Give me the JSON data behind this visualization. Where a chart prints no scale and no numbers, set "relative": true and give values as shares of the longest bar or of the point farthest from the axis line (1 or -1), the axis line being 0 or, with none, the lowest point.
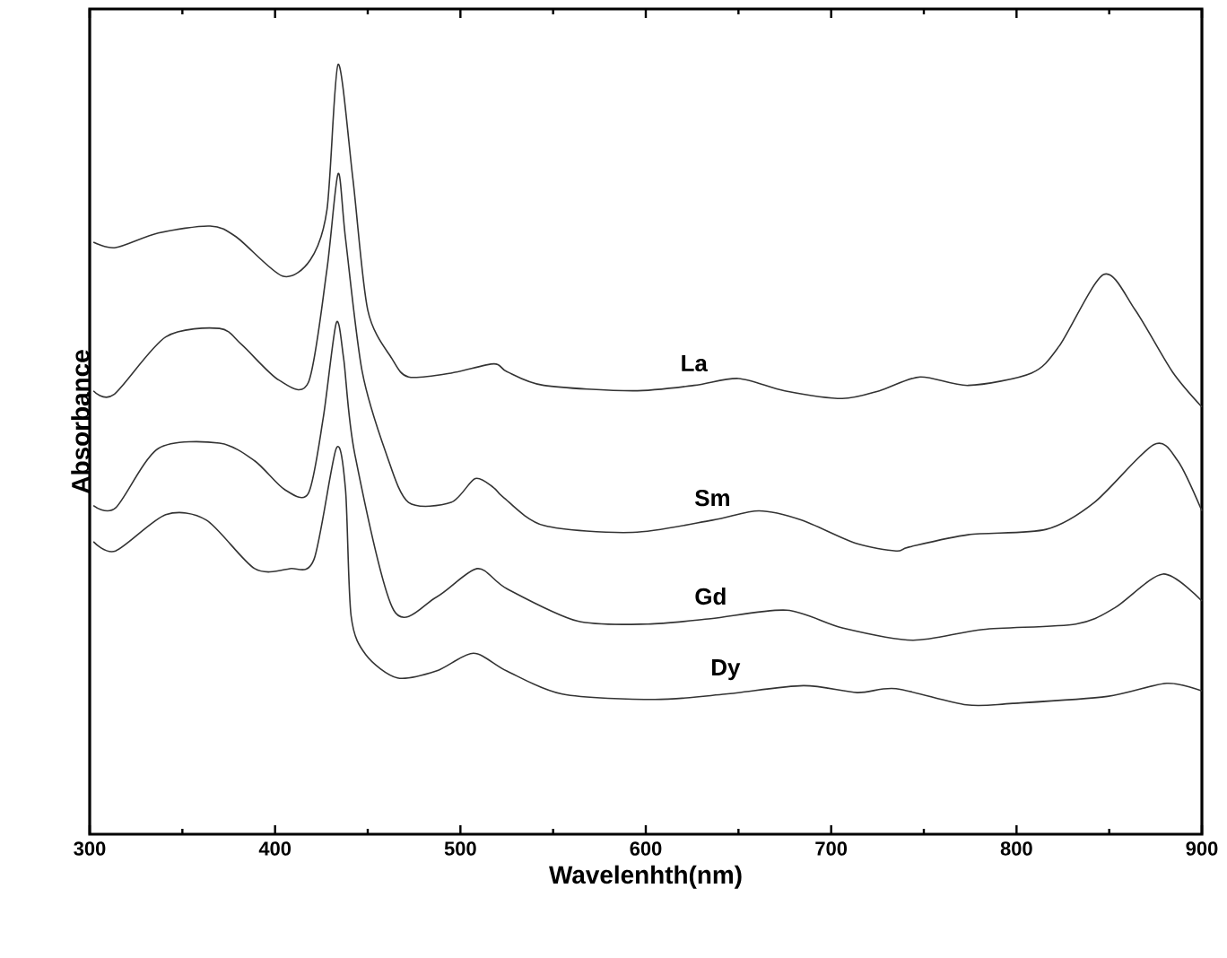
{
  "chart_data": {
    "type": "line",
    "xlabel": "Wavelenhth(nm)",
    "ylabel": "Absorbance",
    "relative": true,
    "tick_labels": "x",
    "legend": false,
    "grid": false,
    "marker": "none",
    "line_style": "solid",
    "xlim": [
      300,
      900
    ],
    "xticks": [
      300,
      400,
      500,
      600,
      700,
      800,
      900
    ],
    "series": [
      {
        "name": "La",
        "color": "#333333",
        "x": [
          302,
          314,
          337,
          365,
          379,
          404,
          419,
          428,
          434,
          442,
          450,
          463,
          472,
          495,
          518,
          525,
          545,
          593,
          626,
          650,
          675,
          706,
          726,
          748,
          774,
          808,
          823,
          847,
          864,
          884,
          900
        ],
        "values": [
          0.769,
          0.762,
          0.781,
          0.79,
          0.776,
          0.725,
          0.746,
          0.811,
          1.0,
          0.851,
          0.681,
          0.618,
          0.594,
          0.599,
          0.611,
          0.601,
          0.583,
          0.576,
          0.583,
          0.592,
          0.576,
          0.566,
          0.576,
          0.594,
          0.583,
          0.599,
          0.634,
          0.727,
          0.681,
          0.601,
          0.555
        ]
      },
      {
        "name": "Sm",
        "color": "#333333",
        "x": [
          302,
          313,
          341,
          370,
          382,
          402,
          418,
          428,
          434,
          438,
          447,
          460,
          472,
          495,
          508,
          518,
          523,
          545,
          593,
          636,
          661,
          684,
          713,
          735,
          742,
          774,
          816,
          842,
          874,
          887,
          900
        ],
        "values": [
          0.576,
          0.571,
          0.646,
          0.657,
          0.636,
          0.59,
          0.587,
          0.734,
          0.858,
          0.774,
          0.601,
          0.494,
          0.431,
          0.431,
          0.462,
          0.45,
          0.438,
          0.401,
          0.392,
          0.408,
          0.42,
          0.408,
          0.378,
          0.368,
          0.373,
          0.389,
          0.396,
          0.431,
          0.506,
          0.485,
          0.42
        ]
      },
      {
        "name": "Gd",
        "color": "#333333",
        "x": [
          302,
          314,
          337,
          370,
          389,
          405,
          418,
          426,
          433,
          437,
          443,
          464,
          487,
          509,
          525,
          563,
          601,
          635,
          676,
          706,
          744,
          782,
          832,
          853,
          879,
          900
        ],
        "values": [
          0.427,
          0.424,
          0.501,
          0.508,
          0.485,
          0.448,
          0.443,
          0.541,
          0.664,
          0.618,
          0.494,
          0.291,
          0.308,
          0.345,
          0.319,
          0.277,
          0.273,
          0.28,
          0.291,
          0.268,
          0.252,
          0.266,
          0.273,
          0.294,
          0.338,
          0.303
        ]
      },
      {
        "name": "Dy",
        "color": "#333333",
        "x": [
          302,
          314,
          341,
          363,
          389,
          408,
          421,
          433,
          438,
          441,
          449,
          466,
          487,
          507,
          525,
          555,
          605,
          643,
          685,
          714,
          735,
          773,
          798,
          849,
          881,
          900
        ],
        "values": [
          0.38,
          0.368,
          0.415,
          0.408,
          0.345,
          0.345,
          0.357,
          0.501,
          0.448,
          0.284,
          0.233,
          0.203,
          0.212,
          0.235,
          0.212,
          0.182,
          0.175,
          0.182,
          0.193,
          0.184,
          0.189,
          0.168,
          0.17,
          0.179,
          0.196,
          0.186
        ]
      }
    ]
  }
}
